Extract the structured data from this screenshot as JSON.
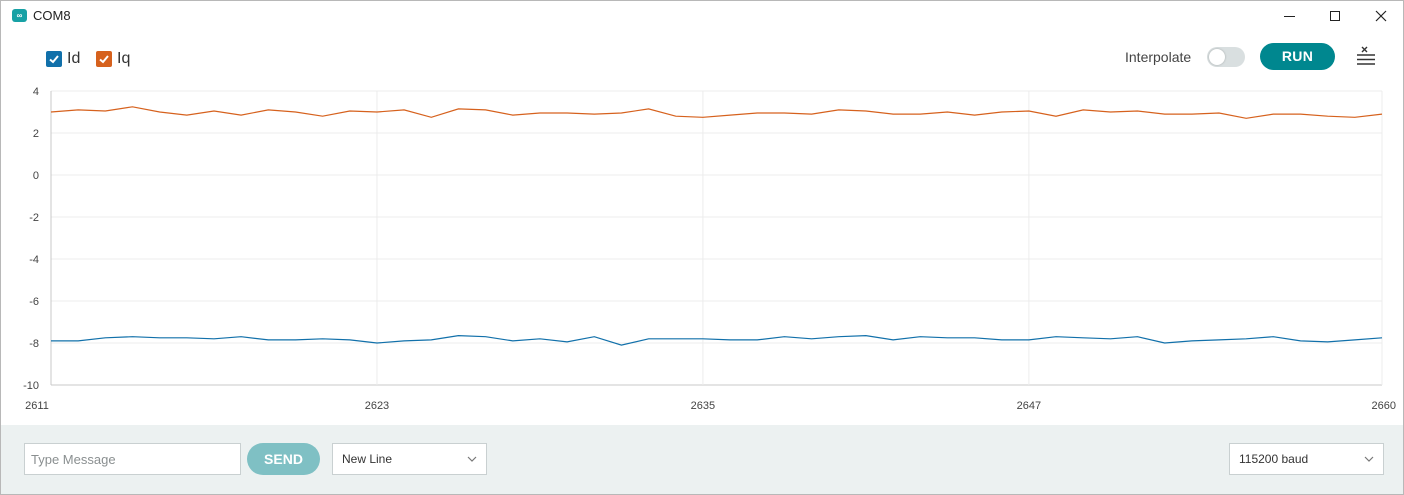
{
  "window": {
    "title": "COM8",
    "app_icon_glyph": "∞",
    "minimize_icon": "minimize-icon",
    "maximize_icon": "maximize-icon",
    "close_icon": "close-icon"
  },
  "toolbar": {
    "legend": [
      {
        "label": "Id",
        "color": "#1170aa",
        "checked": true
      },
      {
        "label": "Iq",
        "color": "#d6611d",
        "checked": true
      }
    ],
    "interpolate_label": "Interpolate",
    "interpolate_on": false,
    "run_label": "RUN",
    "clear_icon": "clear-output-icon"
  },
  "chart_data": {
    "type": "line",
    "x_ticks": [
      2611,
      2623,
      2635,
      2647,
      2660
    ],
    "xlim": [
      2611,
      2660
    ],
    "ylim": [
      -10,
      4
    ],
    "y_ticks": [
      4,
      2,
      0,
      -2,
      -4,
      -6,
      -8,
      -10
    ],
    "grid": true,
    "x": [
      2611,
      2612,
      2613,
      2614,
      2615,
      2616,
      2617,
      2618,
      2619,
      2620,
      2621,
      2622,
      2623,
      2624,
      2625,
      2626,
      2627,
      2628,
      2629,
      2630,
      2631,
      2632,
      2633,
      2634,
      2635,
      2636,
      2637,
      2638,
      2639,
      2640,
      2641,
      2642,
      2643,
      2644,
      2645,
      2646,
      2647,
      2648,
      2649,
      2650,
      2651,
      2652,
      2653,
      2654,
      2655,
      2656,
      2657,
      2658,
      2659,
      2660
    ],
    "series": [
      {
        "name": "Id",
        "color": "#1170aa",
        "values": [
          -7.9,
          -7.9,
          -7.75,
          -7.7,
          -7.75,
          -7.75,
          -7.8,
          -7.7,
          -7.85,
          -7.85,
          -7.8,
          -7.85,
          -8.0,
          -7.9,
          -7.85,
          -7.65,
          -7.7,
          -7.9,
          -7.8,
          -7.95,
          -7.7,
          -8.1,
          -7.8,
          -7.8,
          -7.8,
          -7.85,
          -7.85,
          -7.7,
          -7.8,
          -7.7,
          -7.65,
          -7.85,
          -7.7,
          -7.75,
          -7.75,
          -7.85,
          -7.85,
          -7.7,
          -7.75,
          -7.8,
          -7.7,
          -8.0,
          -7.9,
          -7.85,
          -7.8,
          -7.7,
          -7.9,
          -7.95,
          -7.85,
          -7.75
        ]
      },
      {
        "name": "Iq",
        "color": "#d6611d",
        "values": [
          3.0,
          3.1,
          3.05,
          3.25,
          3.0,
          2.85,
          3.05,
          2.85,
          3.1,
          3.0,
          2.8,
          3.05,
          3.0,
          3.1,
          2.75,
          3.15,
          3.1,
          2.85,
          2.95,
          2.95,
          2.9,
          2.95,
          3.15,
          2.8,
          2.75,
          2.85,
          2.95,
          2.95,
          2.9,
          3.1,
          3.05,
          2.9,
          2.9,
          3.0,
          2.85,
          3.0,
          3.05,
          2.8,
          3.1,
          3.0,
          3.05,
          2.9,
          2.9,
          2.95,
          2.7,
          2.9,
          2.9,
          2.8,
          2.75,
          2.9
        ]
      }
    ]
  },
  "bottombar": {
    "message_placeholder": "Type Message",
    "message_value": "",
    "send_label": "SEND",
    "line_ending": "New Line",
    "baud_rate": "115200 baud",
    "chevron_icon": "chevron-down-icon"
  }
}
